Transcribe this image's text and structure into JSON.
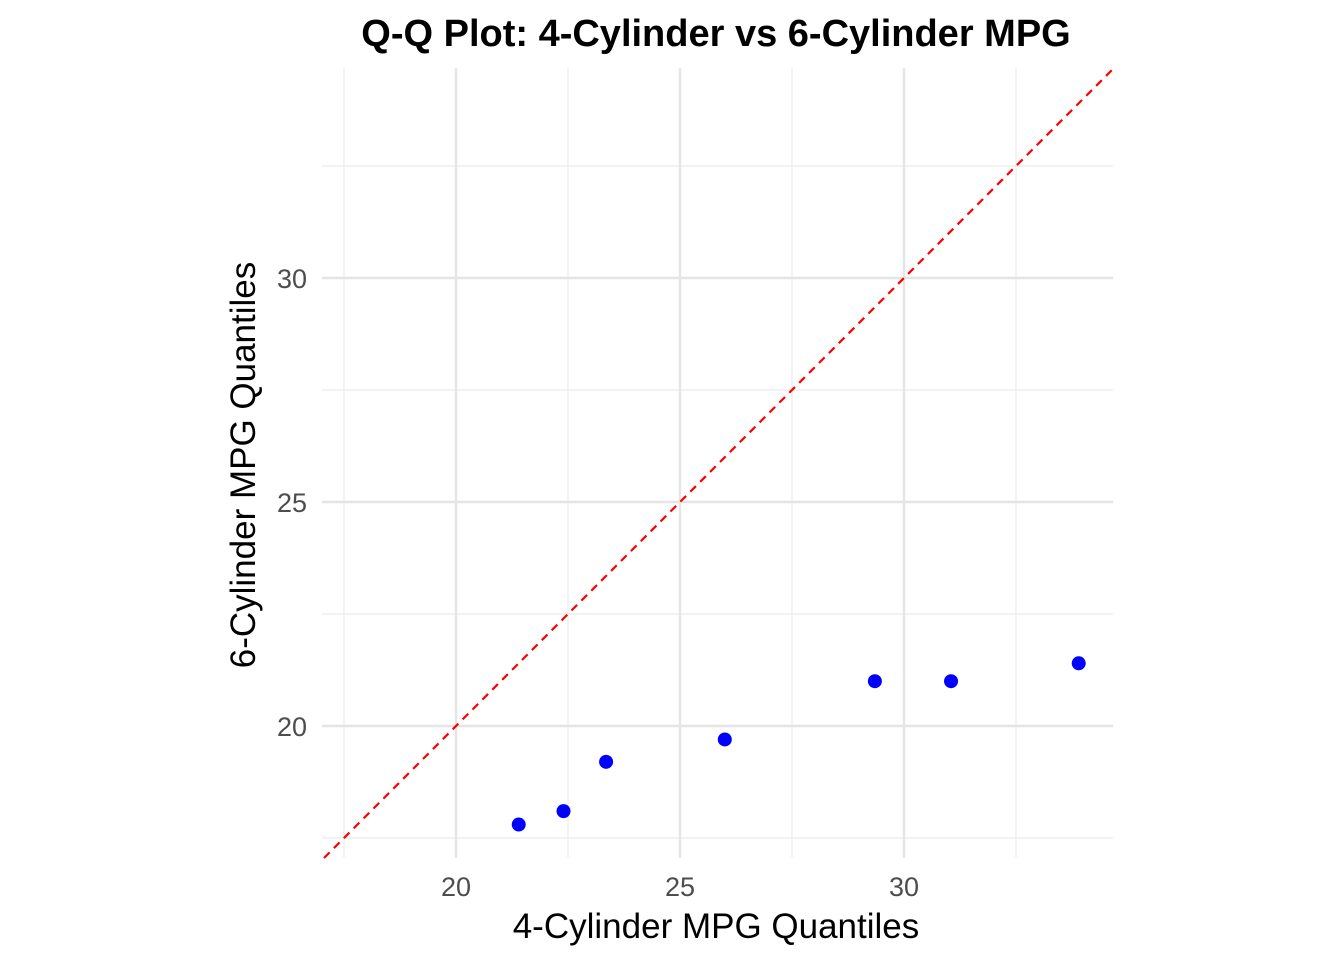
{
  "chart_data": {
    "type": "scatter",
    "title": "Q-Q Plot: 4-Cylinder vs 6-Cylinder MPG",
    "xlabel": "4-Cylinder MPG Quantiles",
    "ylabel": "6-Cylinder MPG Quantiles",
    "xlim": [
      17.5,
      34.5
    ],
    "ylim": [
      17.3,
      34.5
    ],
    "x_ticks": [
      20,
      25,
      30
    ],
    "y_ticks": [
      20,
      25,
      30
    ],
    "x_tick_labels": [
      "20",
      "25",
      "30"
    ],
    "y_tick_labels": [
      "20",
      "25",
      "30"
    ],
    "grid": true,
    "series": [
      {
        "x": [
          21.4,
          22.4,
          23.35,
          26.0,
          29.35,
          31.05,
          33.9
        ],
        "y": [
          17.8,
          18.1,
          19.2,
          19.7,
          21.0,
          21.0,
          21.4
        ],
        "color": "#0000ff"
      }
    ],
    "reference_line": {
      "type": "y = x",
      "color": "#ff0000",
      "style": "dashed"
    }
  }
}
